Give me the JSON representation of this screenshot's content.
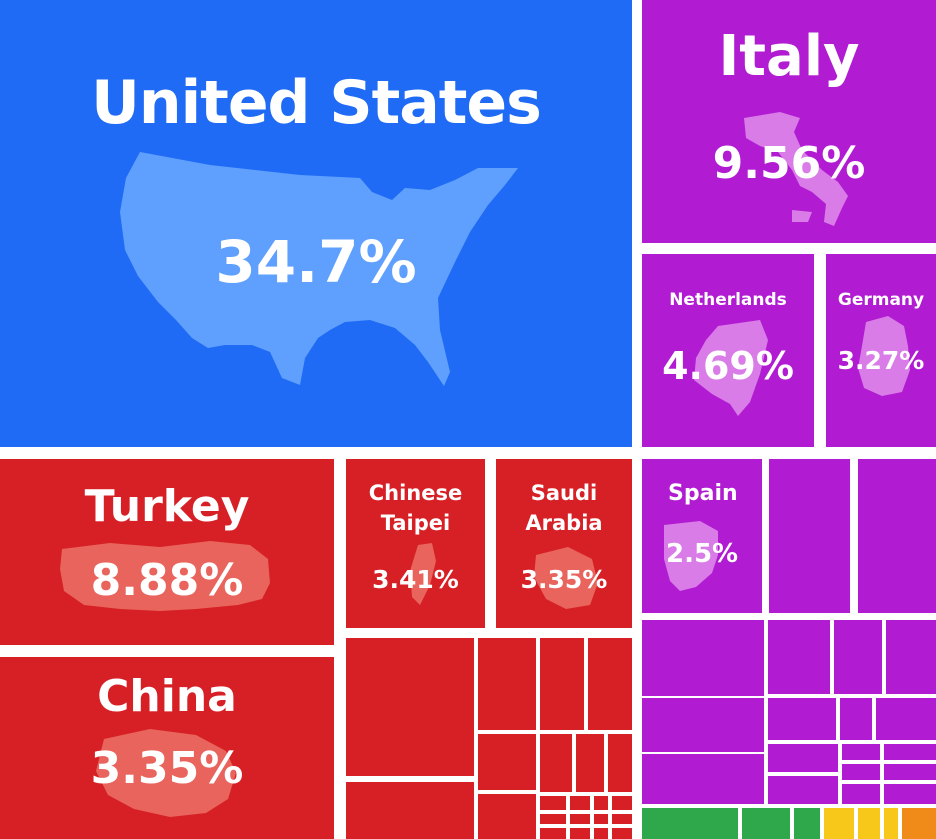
{
  "chart_data": {
    "type": "treemap",
    "title": "",
    "unit": "%",
    "groups": [
      {
        "color": "#1f6bf5",
        "items": [
          {
            "name": "United States",
            "value": 34.7,
            "label": "34.7%"
          }
        ]
      },
      {
        "color": "#b11bd1",
        "items": [
          {
            "name": "Italy",
            "value": 9.56,
            "label": "9.56%"
          },
          {
            "name": "Netherlands",
            "value": 4.69,
            "label": "4.69%"
          },
          {
            "name": "Germany",
            "value": 3.27,
            "label": "3.27%"
          },
          {
            "name": "Spain",
            "value": 2.5,
            "label": "2.5%"
          }
        ]
      },
      {
        "color": "#d62025",
        "items": [
          {
            "name": "Turkey",
            "value": 8.88,
            "label": "8.88%"
          },
          {
            "name": "China",
            "value": 3.35,
            "label": "3.35%"
          },
          {
            "name": "Chinese Taipei",
            "value": 3.41,
            "label": "3.41%"
          },
          {
            "name": "Saudi Arabia",
            "value": 3.35,
            "label": "3.35%"
          }
        ]
      },
      {
        "color": "#2ea84b",
        "items": []
      },
      {
        "color": "#f7c81a",
        "items": []
      },
      {
        "color": "#f08b1a",
        "items": []
      }
    ],
    "labels": {
      "us_name": "United States",
      "us_value": "34.7%",
      "italy_name": "Italy",
      "italy_value": "9.56%",
      "netherlands_name": "Netherlands",
      "netherlands_value": "4.69%",
      "germany_name": "Germany",
      "germany_value": "3.27%",
      "spain_name": "Spain",
      "spain_value": "2.5%",
      "turkey_name": "Turkey",
      "turkey_value": "8.88%",
      "china_name": "China",
      "china_value": "3.35%",
      "taipei_name_1": "Chinese",
      "taipei_name_2": "Taipei",
      "taipei_value": "3.41%",
      "saudi_name_1": "Saudi",
      "saudi_name_2": "Arabia",
      "saudi_value": "3.35%"
    }
  }
}
